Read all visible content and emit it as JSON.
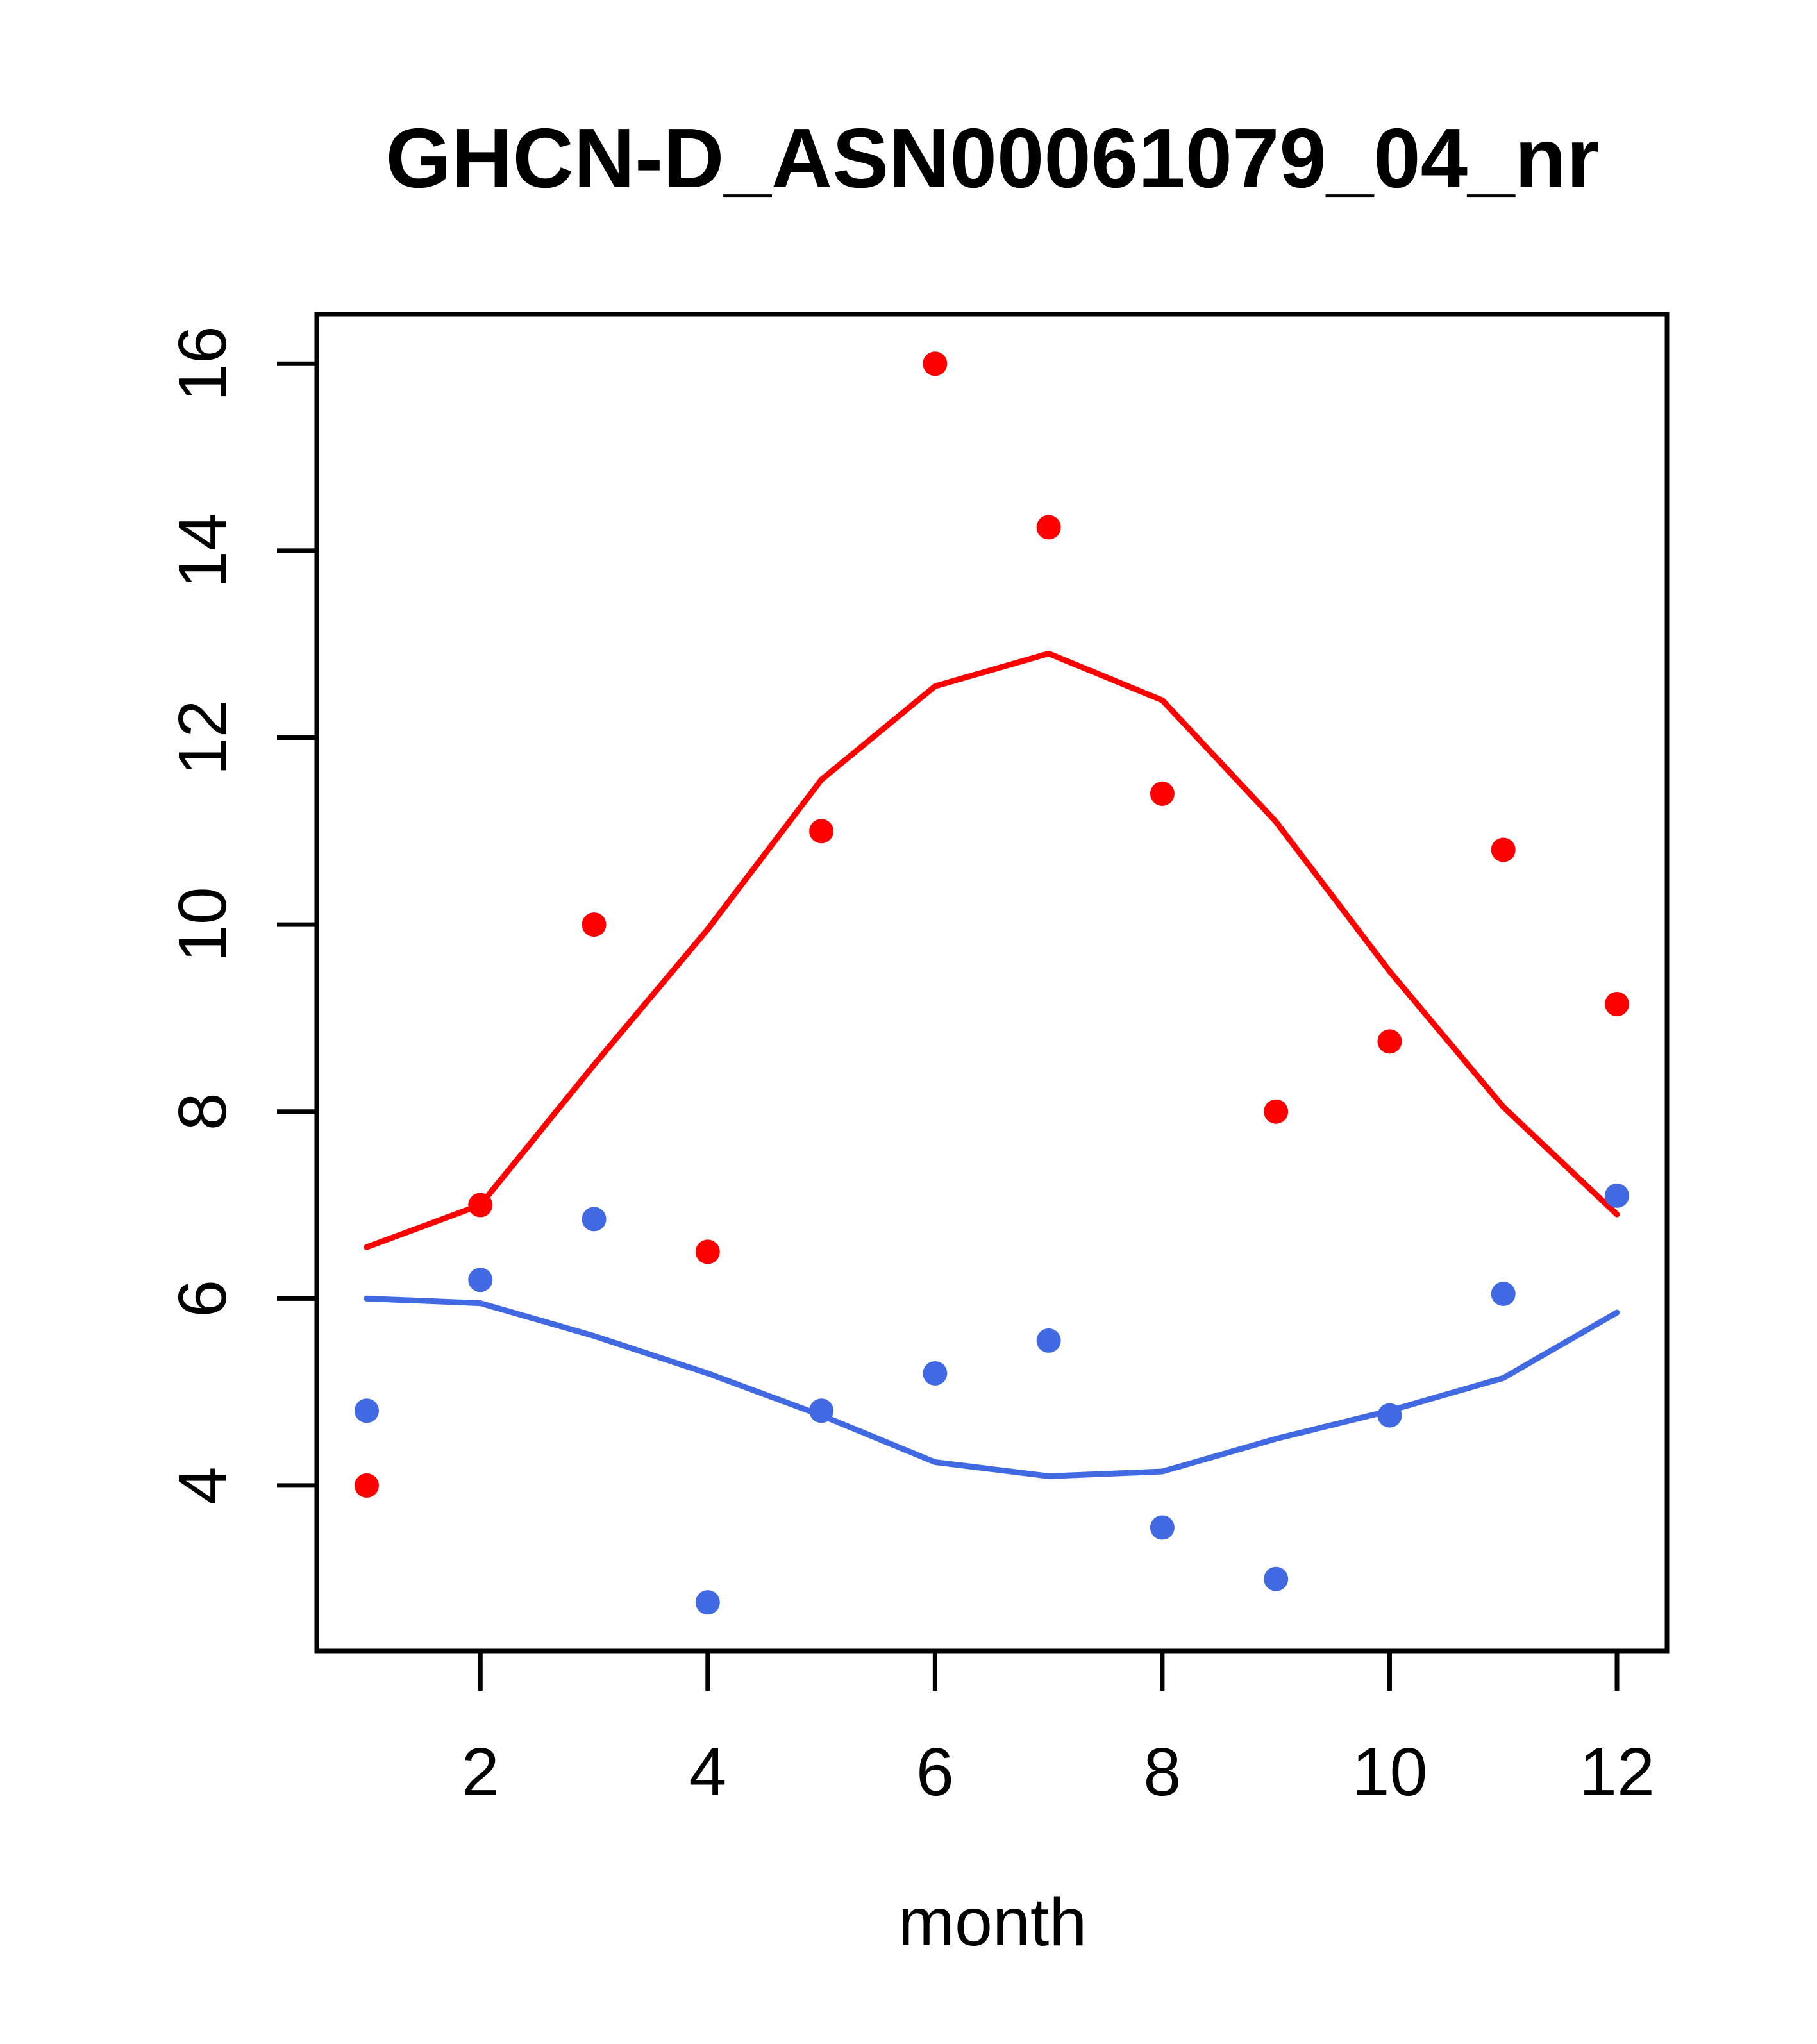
{
  "figure": {
    "background": "#ffffff"
  },
  "chart_data": {
    "type": "scatter",
    "title": "GHCN-D_ASN00061079_04_nr",
    "xlabel": "month",
    "ylabel": "",
    "x": [
      1,
      2,
      3,
      4,
      5,
      6,
      7,
      8,
      9,
      10,
      11,
      12
    ],
    "xlim": [
      0.56,
      12.44
    ],
    "ylim": [
      2.23,
      16.53
    ],
    "xticks": [
      2,
      4,
      6,
      8,
      10,
      12
    ],
    "yticks": [
      4,
      6,
      8,
      10,
      12,
      14,
      16
    ],
    "grid": false,
    "legend": null,
    "colors": {
      "red": "#FF0000",
      "blue": "#4169E1",
      "axis": "#000000"
    },
    "series": [
      {
        "name": "red-smooth-line",
        "type": "line",
        "color": "#FF0000",
        "x": [
          1,
          2,
          3,
          4,
          5,
          6,
          7,
          8,
          9,
          10,
          11,
          12
        ],
        "values": [
          6.55,
          7.0,
          8.5,
          9.95,
          11.55,
          12.55,
          12.9,
          12.4,
          11.1,
          9.5,
          8.05,
          6.9
        ]
      },
      {
        "name": "blue-smooth-line",
        "type": "line",
        "color": "#4169E1",
        "x": [
          1,
          2,
          3,
          4,
          5,
          6,
          7,
          8,
          9,
          10,
          11,
          12
        ],
        "values": [
          6.0,
          5.95,
          5.6,
          5.2,
          4.75,
          4.25,
          4.1,
          4.15,
          4.5,
          4.8,
          5.15,
          5.85
        ]
      },
      {
        "name": "red-points",
        "type": "scatter",
        "color": "#FF0000",
        "marker": "circle",
        "x": [
          1,
          2,
          3,
          4,
          5,
          6,
          7,
          8,
          9,
          10,
          11,
          12
        ],
        "values": [
          4.0,
          7.0,
          10.0,
          6.5,
          11.0,
          16.0,
          14.25,
          11.4,
          8.0,
          8.75,
          10.8,
          9.15
        ]
      },
      {
        "name": "blue-points",
        "type": "scatter",
        "color": "#4169E1",
        "marker": "circle",
        "x": [
          1,
          2,
          3,
          4,
          5,
          6,
          7,
          8,
          9,
          10,
          11,
          12
        ],
        "values": [
          4.8,
          6.2,
          6.85,
          2.75,
          4.8,
          5.2,
          5.55,
          3.55,
          3.0,
          4.75,
          6.05,
          7.1
        ]
      }
    ]
  }
}
